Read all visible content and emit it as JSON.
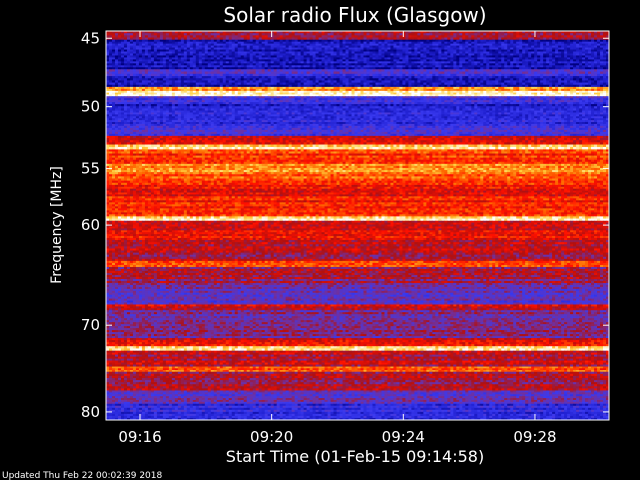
{
  "chart_data": {
    "type": "heatmap",
    "title": "Solar radio Flux (Glasgow)",
    "ylabel": "Frequency [MHz]",
    "xlabel": "Start Time (01-Feb-15 09:14:58)",
    "x_unit": "time",
    "y_unit": "MHz",
    "y_scale": "log",
    "y_inverted": true,
    "xlim": [
      "09:14:58",
      "09:30:15"
    ],
    "ylim": [
      44.5,
      81
    ],
    "x_ticks": [
      {
        "label": "09:16",
        "value": "09:16"
      },
      {
        "label": "09:20",
        "value": "09:20"
      },
      {
        "label": "09:24",
        "value": "09:24"
      },
      {
        "label": "09:28",
        "value": "09:28"
      }
    ],
    "y_ticks": [
      {
        "label": "45",
        "value": 45
      },
      {
        "label": "50",
        "value": 50
      },
      {
        "label": "55",
        "value": 55
      },
      {
        "label": "60",
        "value": 60
      },
      {
        "label": "70",
        "value": 70
      },
      {
        "label": "80",
        "value": 80
      }
    ],
    "colormap": [
      "#000080",
      "#2020d0",
      "#3a3af0",
      "#7030a0",
      "#b01010",
      "#ff1000",
      "#ff6a00",
      "#ffd040",
      "#ffffff"
    ],
    "frequency_bands": [
      {
        "from": 44.5,
        "to": 45.1,
        "level": 0.45
      },
      {
        "from": 45.1,
        "to": 47.2,
        "level": 0.1
      },
      {
        "from": 47.2,
        "to": 47.7,
        "level": 0.28
      },
      {
        "from": 47.7,
        "to": 48.5,
        "level": 0.08
      },
      {
        "from": 48.5,
        "to": 48.8,
        "level": 0.8
      },
      {
        "from": 48.8,
        "to": 49.2,
        "level": 0.98
      },
      {
        "from": 49.2,
        "to": 49.8,
        "level": 0.25
      },
      {
        "from": 49.8,
        "to": 50.3,
        "level": 0.12
      },
      {
        "from": 50.3,
        "to": 51.5,
        "level": 0.2
      },
      {
        "from": 51.5,
        "to": 52.3,
        "level": 0.28
      },
      {
        "from": 52.3,
        "to": 53.0,
        "level": 0.55
      },
      {
        "from": 53.0,
        "to": 53.4,
        "level": 0.92
      },
      {
        "from": 53.4,
        "to": 54.6,
        "level": 0.68
      },
      {
        "from": 54.6,
        "to": 55.3,
        "level": 0.78
      },
      {
        "from": 55.3,
        "to": 56.4,
        "level": 0.72
      },
      {
        "from": 56.4,
        "to": 57.4,
        "level": 0.6
      },
      {
        "from": 57.4,
        "to": 59.2,
        "level": 0.64
      },
      {
        "from": 59.2,
        "to": 59.6,
        "level": 0.96
      },
      {
        "from": 59.6,
        "to": 61.2,
        "level": 0.58
      },
      {
        "from": 61.2,
        "to": 62.4,
        "level": 0.52
      },
      {
        "from": 62.4,
        "to": 63.4,
        "level": 0.48
      },
      {
        "from": 63.4,
        "to": 64.0,
        "level": 0.74
      },
      {
        "from": 64.0,
        "to": 65.8,
        "level": 0.45
      },
      {
        "from": 65.8,
        "to": 67.8,
        "level": 0.33
      },
      {
        "from": 67.8,
        "to": 68.4,
        "level": 0.56
      },
      {
        "from": 68.4,
        "to": 71.4,
        "level": 0.4
      },
      {
        "from": 71.4,
        "to": 72.3,
        "level": 0.58
      },
      {
        "from": 72.3,
        "to": 72.8,
        "level": 0.96
      },
      {
        "from": 72.8,
        "to": 74.6,
        "level": 0.5
      },
      {
        "from": 74.6,
        "to": 75.2,
        "level": 0.72
      },
      {
        "from": 75.2,
        "to": 77.4,
        "level": 0.47
      },
      {
        "from": 77.4,
        "to": 79.0,
        "level": 0.34
      },
      {
        "from": 79.0,
        "to": 81.0,
        "level": 0.2
      }
    ]
  },
  "footer": {
    "updated": "Updated Thu Feb 22 00:02:39 2018"
  }
}
